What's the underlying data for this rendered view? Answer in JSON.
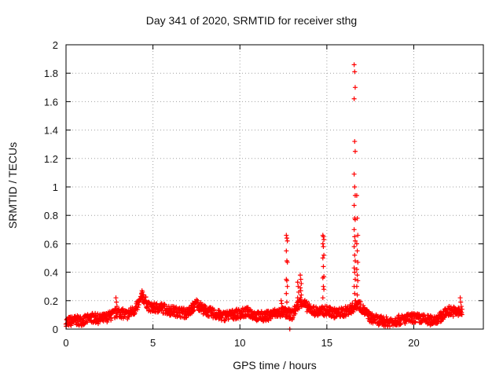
{
  "chart_data": {
    "type": "scatter",
    "title": "Day 341 of 2020, SRMTID for receiver sthg",
    "xlabel": "GPS time / hours",
    "ylabel": "SRMTID / TECUs",
    "xlim": [
      0,
      24
    ],
    "ylim": [
      0,
      2
    ],
    "xticks": [
      0,
      5,
      10,
      15,
      20
    ],
    "yticks": [
      0,
      0.2,
      0.4,
      0.6,
      0.8,
      1,
      1.2,
      1.4,
      1.6,
      1.8,
      2
    ],
    "grid": true,
    "marker": "+",
    "color": "#ff0000",
    "baseline": [
      [
        0.0,
        0.05
      ],
      [
        0.5,
        0.06
      ],
      [
        1.0,
        0.06
      ],
      [
        1.5,
        0.08
      ],
      [
        2.0,
        0.07
      ],
      [
        2.5,
        0.09
      ],
      [
        3.0,
        0.12
      ],
      [
        3.5,
        0.1
      ],
      [
        4.0,
        0.14
      ],
      [
        4.4,
        0.23
      ],
      [
        4.8,
        0.15
      ],
      [
        5.5,
        0.15
      ],
      [
        6.0,
        0.13
      ],
      [
        6.5,
        0.12
      ],
      [
        7.0,
        0.11
      ],
      [
        7.5,
        0.18
      ],
      [
        8.0,
        0.13
      ],
      [
        8.5,
        0.11
      ],
      [
        9.0,
        0.09
      ],
      [
        9.5,
        0.1
      ],
      [
        10.0,
        0.11
      ],
      [
        10.5,
        0.12
      ],
      [
        11.0,
        0.09
      ],
      [
        11.5,
        0.09
      ],
      [
        12.0,
        0.11
      ],
      [
        12.5,
        0.12
      ],
      [
        13.0,
        0.1
      ],
      [
        13.5,
        0.2
      ],
      [
        14.0,
        0.14
      ],
      [
        14.5,
        0.12
      ],
      [
        15.0,
        0.13
      ],
      [
        15.5,
        0.11
      ],
      [
        16.0,
        0.12
      ],
      [
        16.5,
        0.15
      ],
      [
        16.8,
        0.18
      ],
      [
        17.2,
        0.12
      ],
      [
        17.5,
        0.08
      ],
      [
        18.0,
        0.06
      ],
      [
        18.5,
        0.05
      ],
      [
        19.0,
        0.06
      ],
      [
        19.5,
        0.07
      ],
      [
        20.0,
        0.08
      ],
      [
        20.5,
        0.07
      ],
      [
        21.0,
        0.06
      ],
      [
        21.5,
        0.08
      ],
      [
        22.0,
        0.13
      ],
      [
        22.5,
        0.12
      ],
      [
        22.8,
        0.12
      ]
    ],
    "spikes": [
      {
        "x": 12.7,
        "values": [
          0.66,
          0.64,
          0.62,
          0.55,
          0.48,
          0.47,
          0.35,
          0.34,
          0.3,
          0.25,
          0.19
        ]
      },
      {
        "x": 14.8,
        "values": [
          0.66,
          0.65,
          0.63,
          0.6,
          0.58,
          0.52,
          0.5,
          0.44,
          0.37,
          0.36,
          0.3,
          0.28,
          0.22
        ]
      },
      {
        "x": 16.6,
        "values": [
          1.86,
          1.81,
          1.7,
          1.62,
          1.32,
          1.25,
          1.09,
          1.0,
          0.94,
          0.87,
          0.78,
          0.77,
          0.7,
          0.65,
          0.62,
          0.58,
          0.52,
          0.48,
          0.43,
          0.4,
          0.35,
          0.3,
          0.25,
          0.2
        ]
      },
      {
        "x": 16.75,
        "values": [
          0.94,
          0.78,
          0.66,
          0.6,
          0.55,
          0.47,
          0.42,
          0.38,
          0.34,
          0.3,
          0.24
        ]
      },
      {
        "x": 13.5,
        "values": [
          0.38,
          0.35,
          0.32,
          0.29,
          0.27,
          0.24
        ]
      },
      {
        "x": 13.35,
        "values": [
          0.33,
          0.3,
          0.26,
          0.22
        ]
      },
      {
        "x": 4.4,
        "values": [
          0.27,
          0.26,
          0.24,
          0.22
        ]
      },
      {
        "x": 2.9,
        "values": [
          0.22,
          0.19,
          0.16
        ]
      },
      {
        "x": 12.4,
        "values": [
          0.2,
          0.18
        ]
      },
      {
        "x": 22.7,
        "values": [
          0.22,
          0.19,
          0.16
        ]
      },
      {
        "x": 12.9,
        "values": [
          0.0
        ]
      }
    ]
  }
}
